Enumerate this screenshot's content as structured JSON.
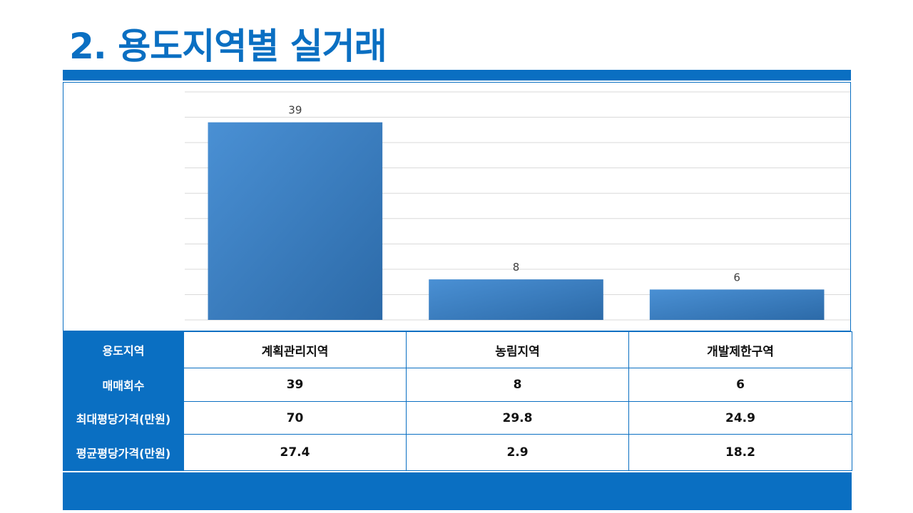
{
  "title": "2. 용도지역별 실거래",
  "colors": {
    "accent": "#0a6fc2",
    "bar_light": "#4a90d4",
    "bar_dark": "#2c6aa8",
    "grid": "#d9d9d9"
  },
  "chart_data": {
    "type": "bar",
    "categories": [
      "계획관리지역",
      "농림지역",
      "개발제한구역"
    ],
    "values": [
      39,
      8,
      6
    ],
    "title": "",
    "xlabel": "",
    "ylabel": "",
    "ylim": [
      0,
      45
    ],
    "grid": true,
    "data_labels": true,
    "legend": "none"
  },
  "table": {
    "columns": [
      "계획관리지역",
      "농림지역",
      "개발제한구역"
    ],
    "rows": [
      {
        "header": "용도지역",
        "cells": [
          "계획관리지역",
          "농림지역",
          "개발제한구역"
        ]
      },
      {
        "header": "매매회수",
        "cells": [
          "39",
          "8",
          "6"
        ]
      },
      {
        "header": "최대평당가격(만원)",
        "cells": [
          "70",
          "29.8",
          "24.9"
        ]
      },
      {
        "header": "평균평당가격(만원)",
        "cells": [
          "27.4",
          "2.9",
          "18.2"
        ]
      }
    ]
  }
}
